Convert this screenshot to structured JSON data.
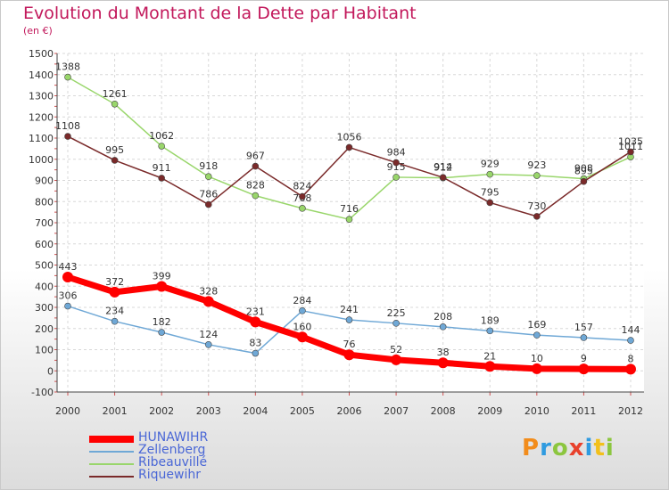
{
  "chart_data": {
    "type": "line",
    "title": "Evolution du Montant de la Dette par Habitant",
    "subtitle": "(en €)",
    "xlabel": "",
    "ylabel": "",
    "x": [
      "2000",
      "2001",
      "2002",
      "2003",
      "2004",
      "2005",
      "2006",
      "2007",
      "2008",
      "2009",
      "2010",
      "2011",
      "2012"
    ],
    "ylim": [
      -100,
      1500
    ],
    "yticks": [
      -100,
      0,
      100,
      200,
      300,
      400,
      500,
      600,
      700,
      800,
      900,
      1000,
      1100,
      1200,
      1300,
      1400,
      1500
    ],
    "grid": true,
    "legend_position": "bottom-left",
    "series": [
      {
        "name": "HUNAWIHR",
        "color": "#ff0000",
        "values": [
          443,
          372,
          399,
          328,
          231,
          160,
          76,
          52,
          38,
          21,
          10,
          9,
          8
        ]
      },
      {
        "name": "Zellenberg",
        "color": "#6fa8d6",
        "values": [
          306,
          234,
          182,
          124,
          83,
          284,
          241,
          225,
          208,
          189,
          169,
          157,
          144
        ]
      },
      {
        "name": "Ribeauvillé",
        "color": "#99d66b",
        "values": [
          1388,
          1261,
          1062,
          918,
          828,
          768,
          716,
          915,
          912,
          929,
          923,
          908,
          1011
        ]
      },
      {
        "name": "Riquewihr",
        "color": "#7a2a2a",
        "values": [
          1108,
          995,
          911,
          786,
          967,
          824,
          1056,
          984,
          914,
          795,
          730,
          895,
          1035
        ]
      }
    ]
  },
  "logo_letters": [
    "P",
    "r",
    "o",
    "x",
    "i",
    "t",
    "i"
  ]
}
